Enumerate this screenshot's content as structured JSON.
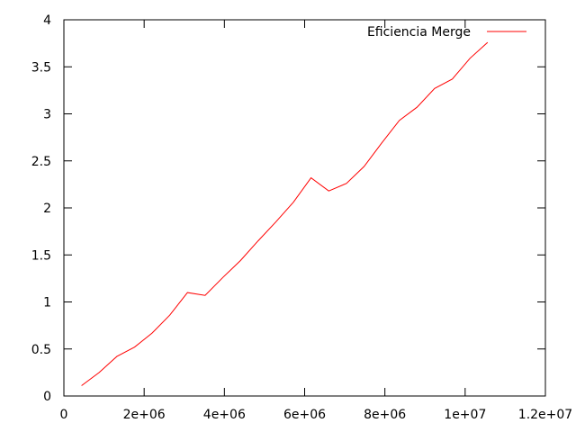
{
  "chart_data": {
    "type": "line",
    "title": "",
    "xlabel": "",
    "ylabel": "",
    "xlim": [
      0,
      12000000
    ],
    "ylim": [
      0,
      4
    ],
    "x_ticks": [
      {
        "value": 0,
        "label": "0"
      },
      {
        "value": 2000000,
        "label": "2e+06"
      },
      {
        "value": 4000000,
        "label": "4e+06"
      },
      {
        "value": 6000000,
        "label": "6e+06"
      },
      {
        "value": 8000000,
        "label": "8e+06"
      },
      {
        "value": 10000000,
        "label": "1e+07"
      },
      {
        "value": 12000000,
        "label": "1.2e+07"
      }
    ],
    "y_ticks": [
      {
        "value": 0,
        "label": "0"
      },
      {
        "value": 0.5,
        "label": "0.5"
      },
      {
        "value": 1,
        "label": "1"
      },
      {
        "value": 1.5,
        "label": "1.5"
      },
      {
        "value": 2,
        "label": "2"
      },
      {
        "value": 2.5,
        "label": "2.5"
      },
      {
        "value": 3,
        "label": "3"
      },
      {
        "value": 3.5,
        "label": "3.5"
      },
      {
        "value": 4,
        "label": "4"
      }
    ],
    "grid": false,
    "legend_position": "top-right",
    "series": [
      {
        "name": "Eficiencia Merge",
        "color": "#ff0000",
        "x": [
          440000,
          880000,
          1320000,
          1760000,
          2200000,
          2640000,
          3080000,
          3520000,
          3960000,
          4400000,
          4840000,
          5280000,
          5720000,
          6160000,
          6600000,
          7040000,
          7480000,
          7920000,
          8360000,
          8800000,
          9240000,
          9680000,
          10120000,
          10560000
        ],
        "y": [
          0.11,
          0.25,
          0.42,
          0.52,
          0.67,
          0.86,
          1.1,
          1.07,
          1.26,
          1.44,
          1.65,
          1.85,
          2.06,
          2.32,
          2.18,
          2.26,
          2.44,
          2.69,
          2.93,
          3.07,
          3.27,
          3.37,
          3.59,
          3.76
        ]
      }
    ]
  }
}
